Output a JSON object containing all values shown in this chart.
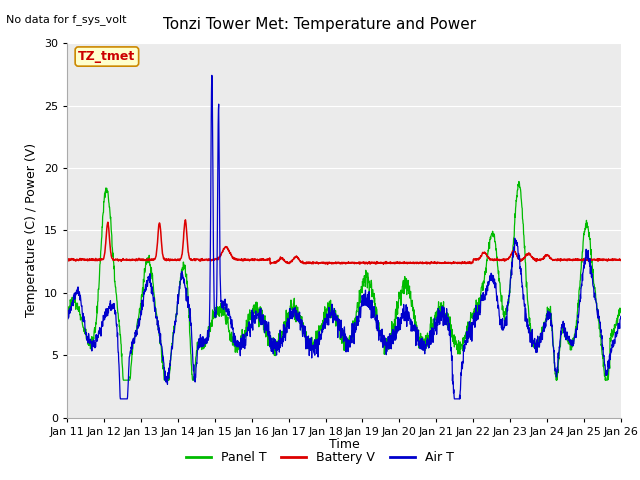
{
  "title": "Tonzi Tower Met: Temperature and Power",
  "ylabel": "Temperature (C) / Power (V)",
  "xlabel": "Time",
  "no_data_text": "No data for f_sys_volt",
  "annotation_text": "TZ_tmet",
  "annotation_bg": "#ffffcc",
  "annotation_border": "#cc8800",
  "xlim": [
    0,
    15
  ],
  "ylim": [
    0,
    30
  ],
  "yticks": [
    0,
    5,
    10,
    15,
    20,
    25,
    30
  ],
  "xtick_labels": [
    "Jan 11",
    "Jan 12",
    "Jan 13",
    "Jan 14",
    "Jan 15",
    "Jan 16",
    "Jan 17",
    "Jan 18",
    "Jan 19",
    "Jan 20",
    "Jan 21",
    "Jan 22",
    "Jan 23",
    "Jan 24",
    "Jan 25",
    "Jan 26"
  ],
  "bg_color": "#ebebeb",
  "panel_color": "#00bb00",
  "battery_color": "#dd0000",
  "air_color": "#0000cc",
  "legend_labels": [
    "Panel T",
    "Battery V",
    "Air T"
  ],
  "title_fontsize": 11,
  "label_fontsize": 9,
  "tick_fontsize": 8,
  "no_data_fontsize": 8,
  "annot_fontsize": 9
}
